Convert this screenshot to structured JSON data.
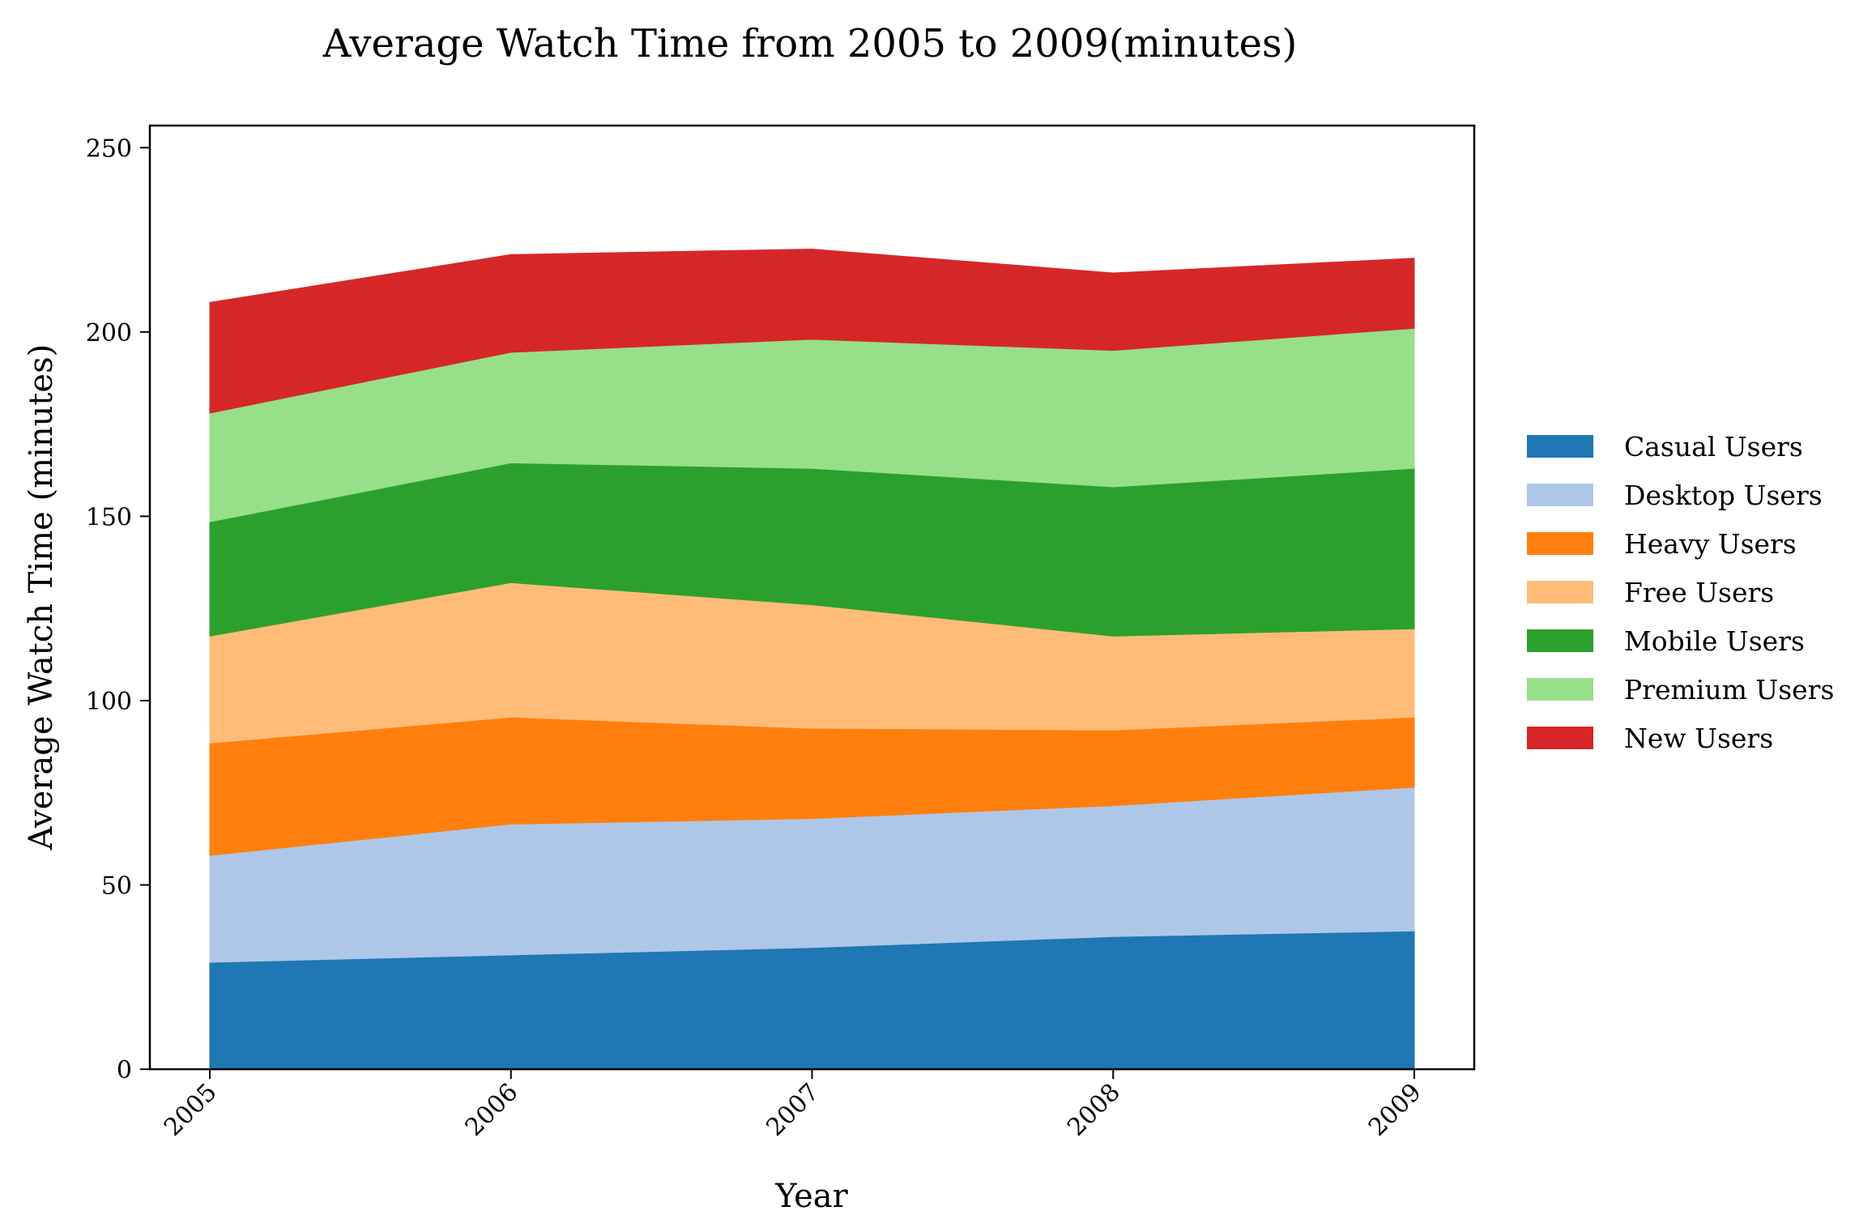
{
  "chart_data": {
    "type": "area",
    "stacked": true,
    "title": "Average Watch Time from 2005 to 2009(minutes)",
    "xlabel": "Year",
    "ylabel": "Average Watch Time (minutes)",
    "x": [
      "2005",
      "2006",
      "2007",
      "2008",
      "2009"
    ],
    "ylim": [
      0,
      256
    ],
    "yticks": [
      0,
      50,
      100,
      150,
      200,
      250
    ],
    "grid": false,
    "legend": "right",
    "series": [
      {
        "name": "Casual Users",
        "color": "#1f77b4",
        "values": [
          29,
          31,
          33,
          36,
          37.5
        ]
      },
      {
        "name": "Desktop Users",
        "color": "#aec7e8",
        "values": [
          29,
          35.5,
          35,
          35.5,
          39
        ]
      },
      {
        "name": "Heavy Users",
        "color": "#ff7f0e",
        "values": [
          30.5,
          29,
          24.5,
          20.5,
          19
        ]
      },
      {
        "name": "Free Users",
        "color": "#ffbb78",
        "values": [
          29,
          36.5,
          33.5,
          25.5,
          24
        ]
      },
      {
        "name": "Mobile Users",
        "color": "#2ca02c",
        "values": [
          31,
          32.5,
          37,
          40.5,
          43.5
        ]
      },
      {
        "name": "Premium Users",
        "color": "#98df8a",
        "values": [
          29.5,
          30,
          35,
          37,
          38
        ]
      },
      {
        "name": "New Users",
        "color": "#d62728",
        "values": [
          30,
          26.5,
          24.5,
          21,
          19
        ]
      }
    ]
  }
}
